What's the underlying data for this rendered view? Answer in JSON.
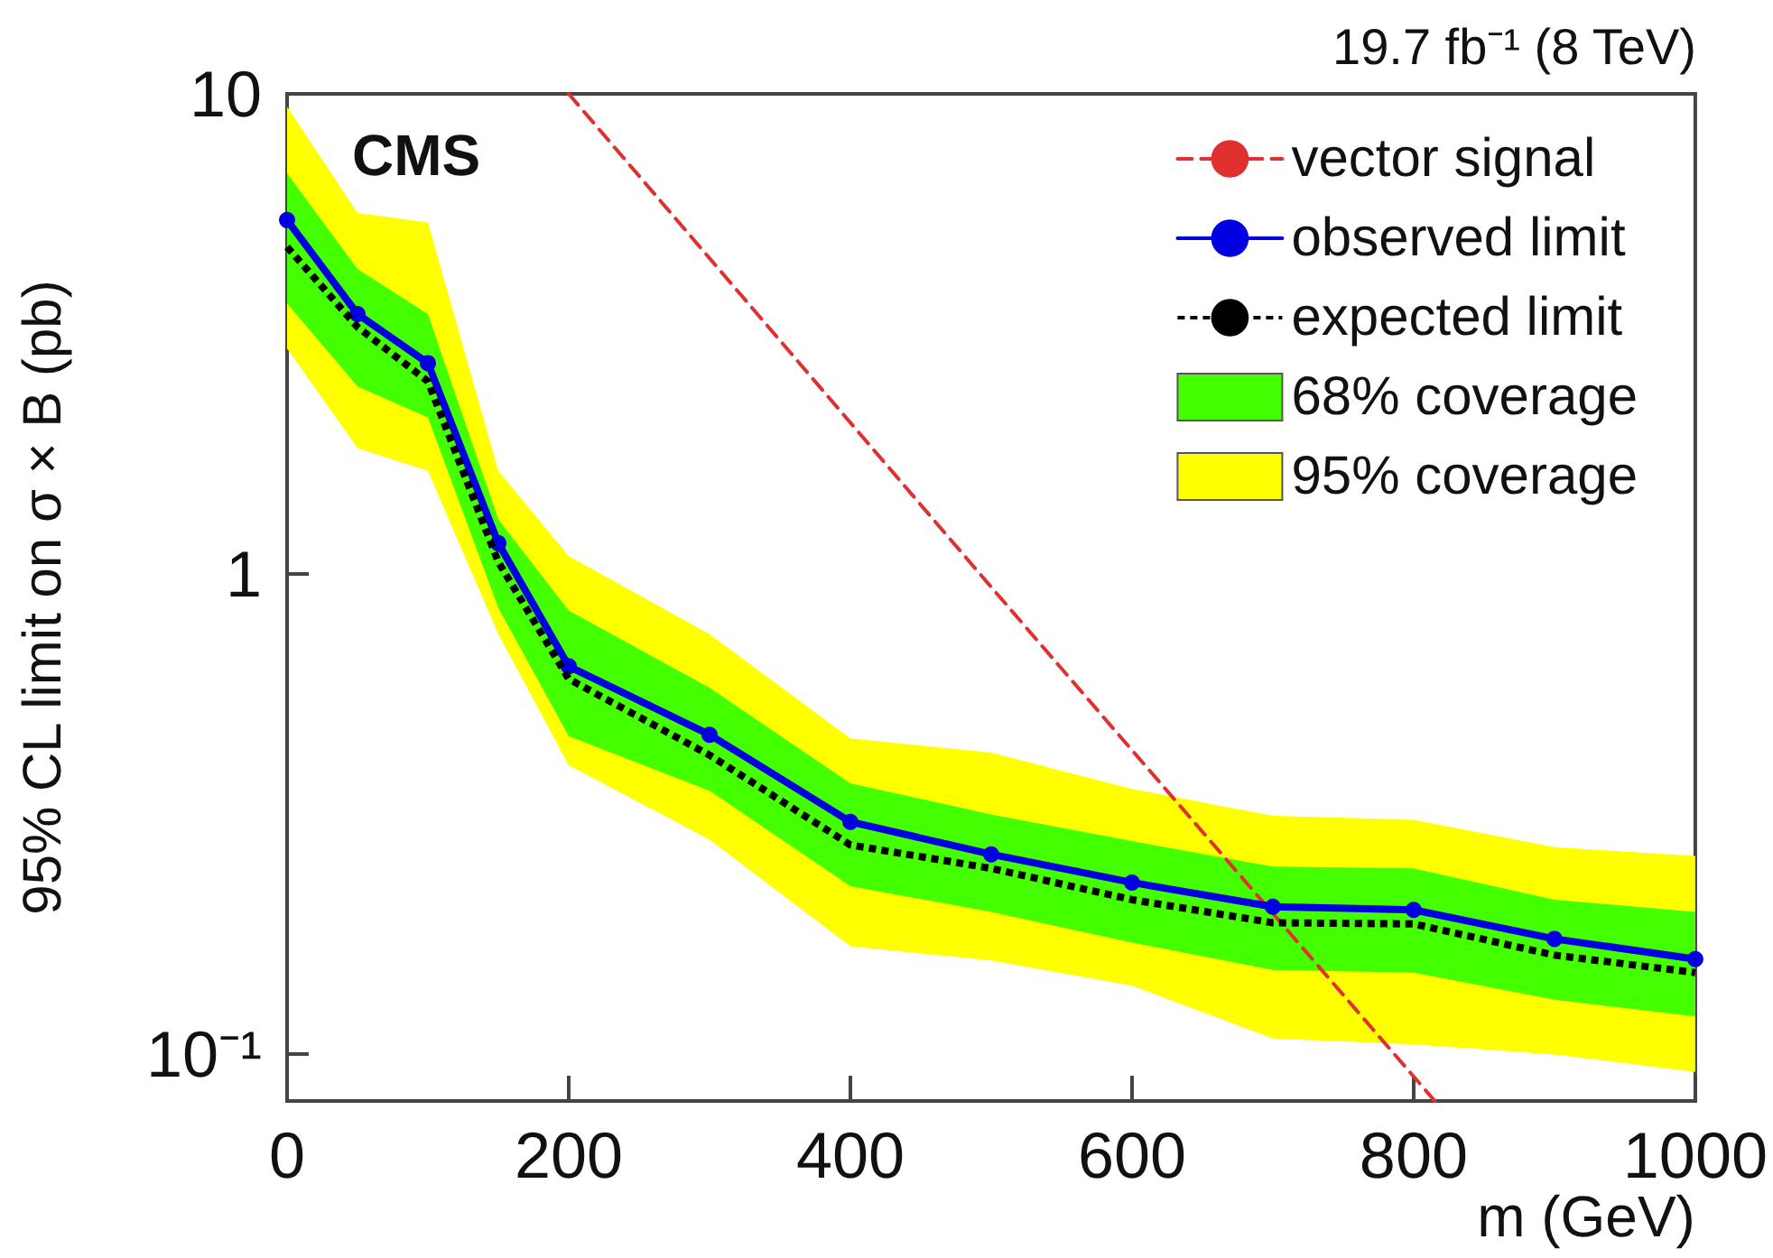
{
  "chart_data": {
    "type": "line",
    "xlabel": "m (GeV)",
    "ylabel": "95% CL limit on σ × B (pb)",
    "annotations": [
      "19.7 fb⁻¹ (8 TeV)",
      "CMS"
    ],
    "xlim": [
      0,
      1000
    ],
    "xticks": [
      0,
      200,
      400,
      600,
      800,
      1000
    ],
    "ylim": [
      0.08,
      10
    ],
    "yticks": [
      {
        "value": 0.1,
        "label": "10⁻¹"
      },
      1,
      10
    ],
    "log": "y",
    "grid": false,
    "legend": "top right",
    "series": [
      {
        "name": "vector signal",
        "color": "#e03030",
        "line_style": "dashed",
        "marker": "none",
        "x": [
          200,
          500,
          815
        ],
        "values": [
          10,
          0.94,
          0.08
        ]
      },
      {
        "name": "observed limit",
        "color": "#0000e0",
        "line_style": "solid",
        "marker": "circle",
        "x": [
          0,
          50,
          100,
          150,
          200,
          300,
          400,
          500,
          600,
          700,
          800,
          900,
          1000
        ],
        "values": [
          5.46,
          3.48,
          2.75,
          1.16,
          0.643,
          0.463,
          0.305,
          0.261,
          0.228,
          0.203,
          0.2,
          0.174,
          0.158
        ]
      },
      {
        "name": "expected limit",
        "color": "#000000",
        "line_style": "dotted",
        "marker": "none",
        "x": [
          0,
          50,
          100,
          150,
          200,
          300,
          400,
          500,
          600,
          700,
          800,
          900,
          1000
        ],
        "values": [
          4.8,
          3.27,
          2.52,
          1.06,
          0.605,
          0.42,
          0.273,
          0.244,
          0.21,
          0.188,
          0.187,
          0.161,
          0.148
        ]
      },
      {
        "name": "68% coverage",
        "type": "area",
        "color": "#44ff00",
        "x": [
          0,
          50,
          100,
          150,
          200,
          300,
          400,
          500,
          600,
          700,
          800,
          900,
          1000
        ],
        "values": [
          null,
          null,
          null,
          null,
          null,
          null,
          null,
          null,
          null,
          null,
          null,
          null,
          null
        ],
        "upper": [
          6.83,
          4.32,
          3.48,
          1.3,
          0.84,
          0.58,
          0.367,
          0.316,
          0.278,
          0.246,
          0.244,
          0.21,
          0.198
        ],
        "lower": [
          3.66,
          2.46,
          2.12,
          0.85,
          0.46,
          0.354,
          0.224,
          0.198,
          0.171,
          0.15,
          0.148,
          0.13,
          0.12
        ]
      },
      {
        "name": "95% coverage",
        "type": "area",
        "color": "#ffff00",
        "x": [
          0,
          50,
          100,
          150,
          200,
          300,
          400,
          500,
          600,
          700,
          800,
          900,
          1000
        ],
        "values": [
          null,
          null,
          null,
          null,
          null,
          null,
          null,
          null,
          null,
          null,
          null,
          null,
          null
        ],
        "upper": [
          9.4,
          5.65,
          5.4,
          1.64,
          1.09,
          0.75,
          0.455,
          0.425,
          0.357,
          0.314,
          0.308,
          0.27,
          0.259
        ],
        "lower": [
          2.95,
          1.83,
          1.64,
          0.75,
          0.4,
          0.28,
          0.168,
          0.157,
          0.139,
          0.108,
          0.105,
          0.1,
          0.092
        ]
      }
    ]
  }
}
